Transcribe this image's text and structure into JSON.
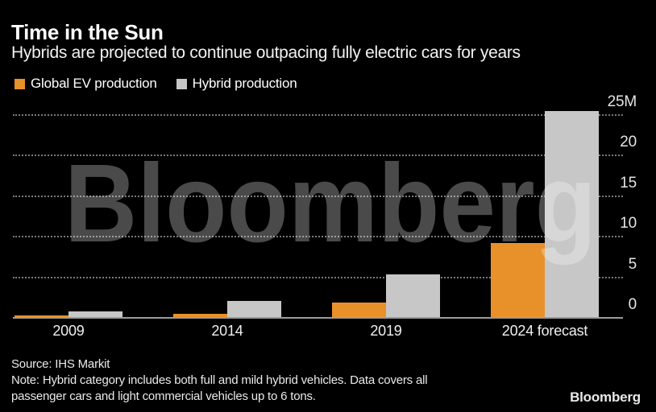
{
  "header": {
    "title": "Time in the Sun",
    "subtitle": "Hybrids are projected to continue outpacing fully electric cars for years"
  },
  "legend": {
    "items": [
      {
        "label": "Global EV production",
        "color": "#E8912B"
      },
      {
        "label": "Hybrid production",
        "color": "#C7C7C7"
      }
    ]
  },
  "watermark_text": "Bloomberg",
  "chart_data": {
    "type": "bar",
    "categories": [
      "2009",
      "2014",
      "2019",
      "2024 forecast"
    ],
    "series": [
      {
        "name": "Global EV production",
        "color": "#E8912B",
        "values": [
          0.1,
          0.35,
          1.8,
          9.1
        ]
      },
      {
        "name": "Hybrid production",
        "color": "#C7C7C7",
        "values": [
          0.7,
          2.0,
          5.3,
          25.4
        ]
      }
    ],
    "unit": "millions of vehicles",
    "y_ticks": [
      {
        "value": 25,
        "label": "25M"
      },
      {
        "value": 20,
        "label": "20"
      },
      {
        "value": 15,
        "label": "15"
      },
      {
        "value": 10,
        "label": "10"
      },
      {
        "value": 5,
        "label": "5"
      },
      {
        "value": 0,
        "label": "0"
      }
    ],
    "ylim": [
      0,
      25.4
    ],
    "grid": "horizontal-dotted",
    "axis_side": "right",
    "legend_position": "top-left",
    "title": "Time in the Sun",
    "xlabel": "",
    "ylabel": ""
  },
  "footer": {
    "source": "Source: IHS Markit",
    "note_lines": [
      "Note: Hybrid category includes both full and mild hybrid vehicles. Data covers all",
      "passenger cars and light commercial vehicles up to 6 tons."
    ],
    "logo": "Bloomberg"
  },
  "colors": {
    "background": "#000000",
    "ev_orange": "#E8912B",
    "hybrid_gray": "#C7C7C7",
    "gridline": "#7A7A7A",
    "baseline": "#9C9C9C",
    "text": "#FFFFFF",
    "watermark": "rgba(255,255,255,0.29)"
  }
}
